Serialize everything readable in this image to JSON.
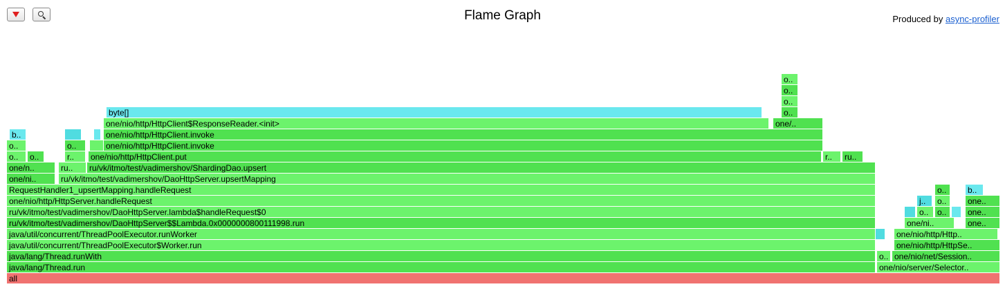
{
  "header": {
    "title": "Flame Graph",
    "credit_prefix": "Produced by ",
    "credit_link": "async-profiler"
  },
  "toolbar": {
    "reverse_icon": "triangle-down-icon",
    "search_icon": "magnifier-icon"
  },
  "colors": {
    "root": "#f07270",
    "java": "#50e150",
    "java_light": "#6cf36c",
    "jit": "#50dce0",
    "jit_light": "#6ae8ee"
  },
  "chart_data": {
    "type": "flame",
    "total_width_units": 1436,
    "frames": [
      {
        "row": 0,
        "start": 0,
        "width": 1436,
        "name": "all",
        "label": "all",
        "kind": "root"
      },
      {
        "row": 1,
        "start": 0,
        "width": 1256,
        "name": "java/lang/Thread.run",
        "label": "java/lang/Thread.run",
        "kind": "java"
      },
      {
        "row": 1,
        "start": 1258,
        "width": 178,
        "name": "one/nio/server/SelectorThread.run",
        "label": "one/nio/server/Selector..",
        "kind": "java"
      },
      {
        "row": 2,
        "start": 0,
        "width": 1256,
        "name": "java/lang/Thread.runWith",
        "label": "java/lang/Thread.runWith",
        "kind": "java"
      },
      {
        "row": 2,
        "start": 1258,
        "width": 20,
        "name": "o",
        "label": "o..",
        "kind": "java"
      },
      {
        "row": 2,
        "start": 1280,
        "width": 156,
        "name": "one/nio/net/Session.process",
        "label": "one/nio/net/Session..",
        "kind": "java"
      },
      {
        "row": 3,
        "start": 0,
        "width": 1256,
        "name": "java/util/concurrent/ThreadPoolExecutor$Worker.run",
        "label": "java/util/concurrent/ThreadPoolExecutor$Worker.run",
        "kind": "java"
      },
      {
        "row": 3,
        "start": 1283,
        "width": 153,
        "name": "one/nio/http/HttpSession.processRead",
        "label": "one/nio/http/HttpSe..",
        "kind": "java"
      },
      {
        "row": 4,
        "start": 0,
        "width": 1256,
        "name": "java/util/concurrent/ThreadPoolExecutor.runWorker",
        "label": "java/util/concurrent/ThreadPoolExecutor.runWorker",
        "kind": "java"
      },
      {
        "row": 4,
        "start": 1256,
        "width": 14,
        "name": "",
        "label": "",
        "kind": "jit"
      },
      {
        "row": 4,
        "start": 1283,
        "width": 150,
        "name": "one/nio/http/HttpSession.handleParsedRequest",
        "label": "one/nio/http/Http..",
        "kind": "java"
      },
      {
        "row": 5,
        "start": 0,
        "width": 1256,
        "name": "ru/vk/itmo/test/vadimershov/DaoHttpServer$$Lambda.0x0000000800111998.run",
        "label": "ru/vk/itmo/test/vadimershov/DaoHttpServer$$Lambda.0x0000000800111998.run",
        "kind": "java"
      },
      {
        "row": 5,
        "start": 1298,
        "width": 72,
        "name": "one/nio/http/HttpServer.handleRequest",
        "label": "one/ni..",
        "kind": "java"
      },
      {
        "row": 5,
        "start": 1386,
        "width": 50,
        "name": "one",
        "label": "one..",
        "kind": "java"
      },
      {
        "row": 6,
        "start": 0,
        "width": 1256,
        "name": "ru/vk/itmo/test/vadimershov/DaoHttpServer.lambda$handleRequest$0",
        "label": "ru/vk/itmo/test/vadimershov/DaoHttpServer.lambda$handleRequest$0",
        "kind": "java"
      },
      {
        "row": 6,
        "start": 1298,
        "width": 16,
        "name": "",
        "label": "",
        "kind": "jit"
      },
      {
        "row": 6,
        "start": 1316,
        "width": 24,
        "name": "o",
        "label": "o..",
        "kind": "java"
      },
      {
        "row": 6,
        "start": 1342,
        "width": 22,
        "name": "o",
        "label": "o..",
        "kind": "java"
      },
      {
        "row": 6,
        "start": 1366,
        "width": 14,
        "name": "",
        "label": "",
        "kind": "jit"
      },
      {
        "row": 6,
        "start": 1386,
        "width": 50,
        "name": "one",
        "label": "one..",
        "kind": "java"
      },
      {
        "row": 7,
        "start": 0,
        "width": 1256,
        "name": "one/nio/http/HttpServer.handleRequest",
        "label": "one/nio/http/HttpServer.handleRequest",
        "kind": "java"
      },
      {
        "row": 7,
        "start": 1316,
        "width": 22,
        "name": "j",
        "label": "j..",
        "kind": "jit"
      },
      {
        "row": 7,
        "start": 1342,
        "width": 22,
        "name": "o",
        "label": "o..",
        "kind": "java"
      },
      {
        "row": 7,
        "start": 1386,
        "width": 50,
        "name": "one",
        "label": "one..",
        "kind": "java"
      },
      {
        "row": 8,
        "start": 0,
        "width": 1256,
        "name": "RequestHandler1_upsertMapping.handleRequest",
        "label": "RequestHandler1_upsertMapping.handleRequest",
        "kind": "java"
      },
      {
        "row": 8,
        "start": 1342,
        "width": 22,
        "name": "o",
        "label": "o..",
        "kind": "java"
      },
      {
        "row": 8,
        "start": 1386,
        "width": 26,
        "name": "b",
        "label": "b..",
        "kind": "jit"
      },
      {
        "row": 9,
        "start": 0,
        "width": 70,
        "name": "one/nio/http/HttpSession.sendResponse",
        "label": "one/ni..",
        "kind": "java"
      },
      {
        "row": 9,
        "start": 75,
        "width": 1181,
        "name": "ru/vk/itmo/test/vadimershov/DaoHttpServer.upsertMapping",
        "label": "ru/vk/itmo/test/vadimershov/DaoHttpServer.upsertMapping",
        "kind": "java"
      },
      {
        "row": 10,
        "start": 0,
        "width": 70,
        "name": "one/nio/net/Session.write",
        "label": "one/n..",
        "kind": "java"
      },
      {
        "row": 10,
        "start": 75,
        "width": 40,
        "name": "ru",
        "label": "ru..",
        "kind": "java"
      },
      {
        "row": 10,
        "start": 116,
        "width": 1140,
        "name": "ru/vk/itmo/test/vadimershov/ShardingDao.upsert",
        "label": "ru/vk/itmo/test/vadimershov/ShardingDao.upsert",
        "kind": "java"
      },
      {
        "row": 11,
        "start": 0,
        "width": 28,
        "name": "o",
        "label": "o..",
        "kind": "java"
      },
      {
        "row": 11,
        "start": 30,
        "width": 24,
        "name": "o",
        "label": "o..",
        "kind": "java"
      },
      {
        "row": 11,
        "start": 84,
        "width": 30,
        "name": "r",
        "label": "r..",
        "kind": "java"
      },
      {
        "row": 11,
        "start": 118,
        "width": 1060,
        "name": "one/nio/http/HttpClient.put",
        "label": "one/nio/http/HttpClient.put",
        "kind": "java"
      },
      {
        "row": 11,
        "start": 1180,
        "width": 26,
        "name": "r",
        "label": "r..",
        "kind": "java"
      },
      {
        "row": 11,
        "start": 1208,
        "width": 30,
        "name": "ru",
        "label": "ru..",
        "kind": "java"
      },
      {
        "row": 12,
        "start": 0,
        "width": 28,
        "name": "o",
        "label": "o..",
        "kind": "java"
      },
      {
        "row": 12,
        "start": 84,
        "width": 30,
        "name": "o",
        "label": "o..",
        "kind": "java"
      },
      {
        "row": 12,
        "start": 120,
        "width": 20,
        "name": "",
        "label": "",
        "kind": "java"
      },
      {
        "row": 12,
        "start": 140,
        "width": 1040,
        "name": "one/nio/http/HttpClient.invoke",
        "label": "one/nio/http/HttpClient.invoke",
        "kind": "java"
      },
      {
        "row": 13,
        "start": 4,
        "width": 24,
        "name": "b",
        "label": "b..",
        "kind": "jit"
      },
      {
        "row": 13,
        "start": 84,
        "width": 24,
        "name": "",
        "label": "",
        "kind": "jit"
      },
      {
        "row": 13,
        "start": 126,
        "width": 10,
        "name": "",
        "label": "",
        "kind": "jit"
      },
      {
        "row": 13,
        "start": 140,
        "width": 1040,
        "name": "one/nio/http/HttpClient.invoke",
        "label": "one/nio/http/HttpClient.invoke",
        "kind": "java"
      },
      {
        "row": 14,
        "start": 140,
        "width": 962,
        "name": "one/nio/http/HttpClient$ResponseReader.<init>",
        "label": "one/nio/http/HttpClient$ResponseReader.<init>",
        "kind": "java"
      },
      {
        "row": 14,
        "start": 1108,
        "width": 72,
        "name": "one",
        "label": "one/..",
        "kind": "java"
      },
      {
        "row": 15,
        "start": 144,
        "width": 948,
        "name": "byte[]",
        "label": "byte[]",
        "kind": "jit"
      },
      {
        "row": 15,
        "start": 1120,
        "width": 24,
        "name": "o",
        "label": "o..",
        "kind": "java"
      },
      {
        "row": 16,
        "start": 1120,
        "width": 24,
        "name": "o",
        "label": "o..",
        "kind": "java"
      },
      {
        "row": 17,
        "start": 1120,
        "width": 24,
        "name": "o",
        "label": "o..",
        "kind": "java"
      },
      {
        "row": 18,
        "start": 1120,
        "width": 24,
        "name": "o",
        "label": "o..",
        "kind": "java"
      }
    ]
  }
}
